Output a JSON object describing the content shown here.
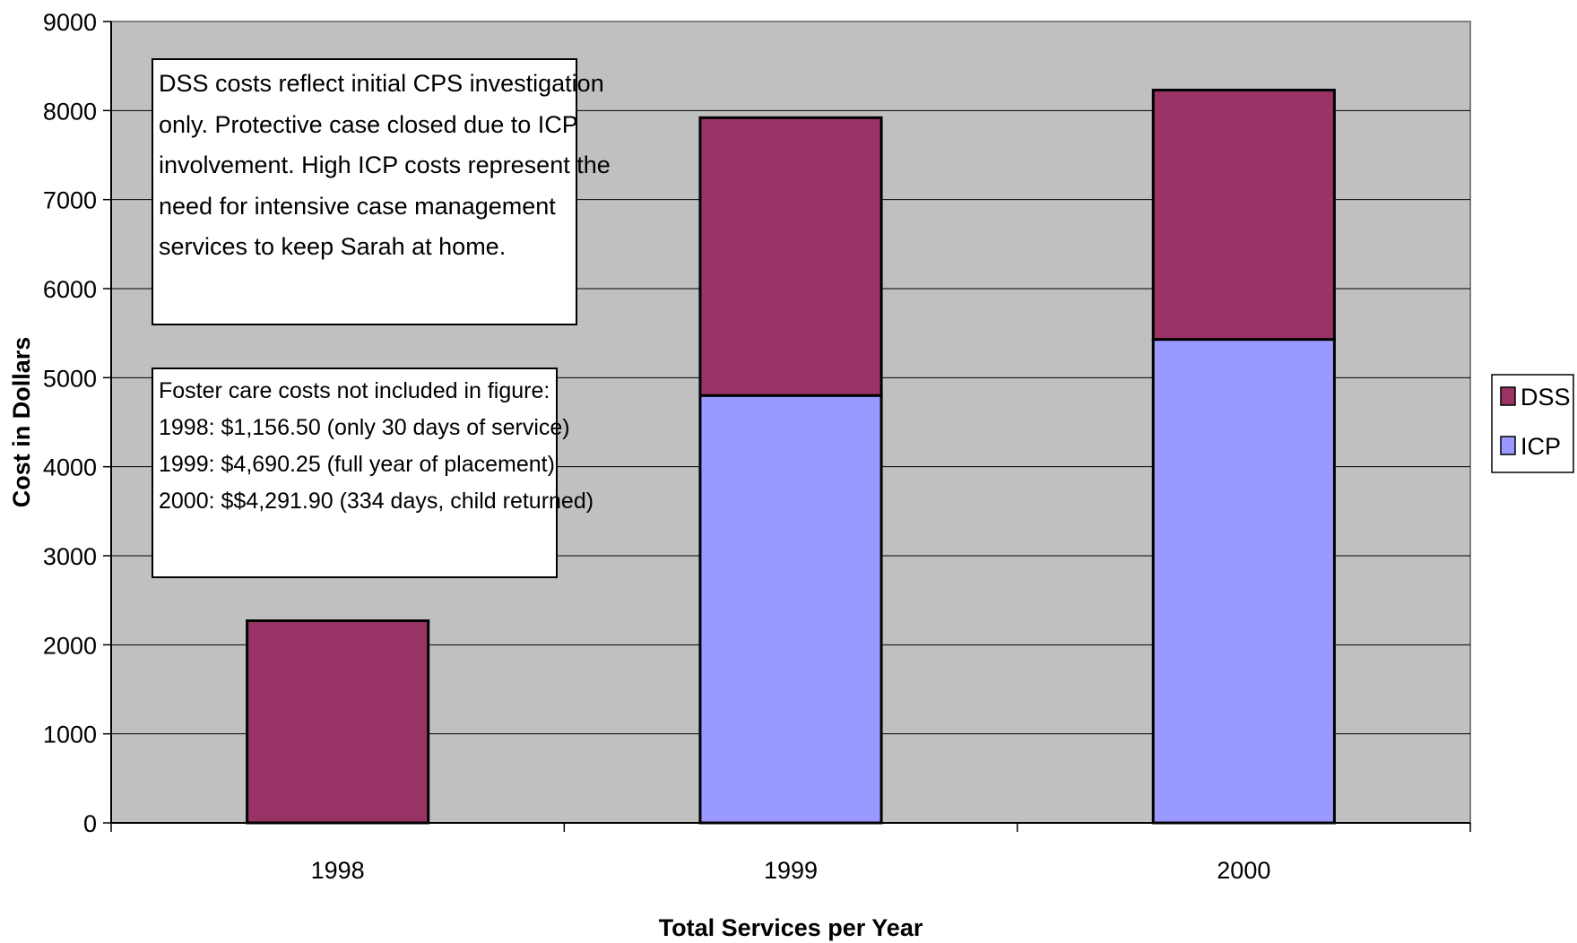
{
  "chart_data": {
    "type": "bar",
    "stacked": true,
    "categories": [
      "1998",
      "1999",
      "2000"
    ],
    "series": [
      {
        "name": "ICP",
        "color": "#9999ff",
        "values": [
          0,
          4800,
          5430
        ]
      },
      {
        "name": "DSS",
        "color": "#993366",
        "values": [
          2270,
          3120,
          2800
        ]
      }
    ],
    "xlabel": "Total Services per Year",
    "ylabel": "Cost in Dollars",
    "ylim": [
      0,
      9000
    ],
    "yticks": [
      "0",
      "1000",
      "2000",
      "3000",
      "4000",
      "5000",
      "6000",
      "7000",
      "8000",
      "9000"
    ],
    "grid": true,
    "plot_background": "#c0c0c0",
    "legend": {
      "position": "right",
      "entries": [
        "DSS",
        "ICP"
      ]
    },
    "annotations": [
      {
        "lines": [
          "DSS costs reflect initial CPS investigation",
          "only. Protective case closed due to ICP",
          "involvement. High ICP costs represent the",
          "need for intensive case management",
          "services to keep Sarah at home."
        ]
      },
      {
        "lines": [
          "Foster care costs not included in figure:",
          "1998: $1,156.50 (only 30 days of service)",
          "1999: $4,690.25 (full year of placement)",
          "2000: $$4,291.90 (334 days, child returned)"
        ]
      }
    ]
  }
}
